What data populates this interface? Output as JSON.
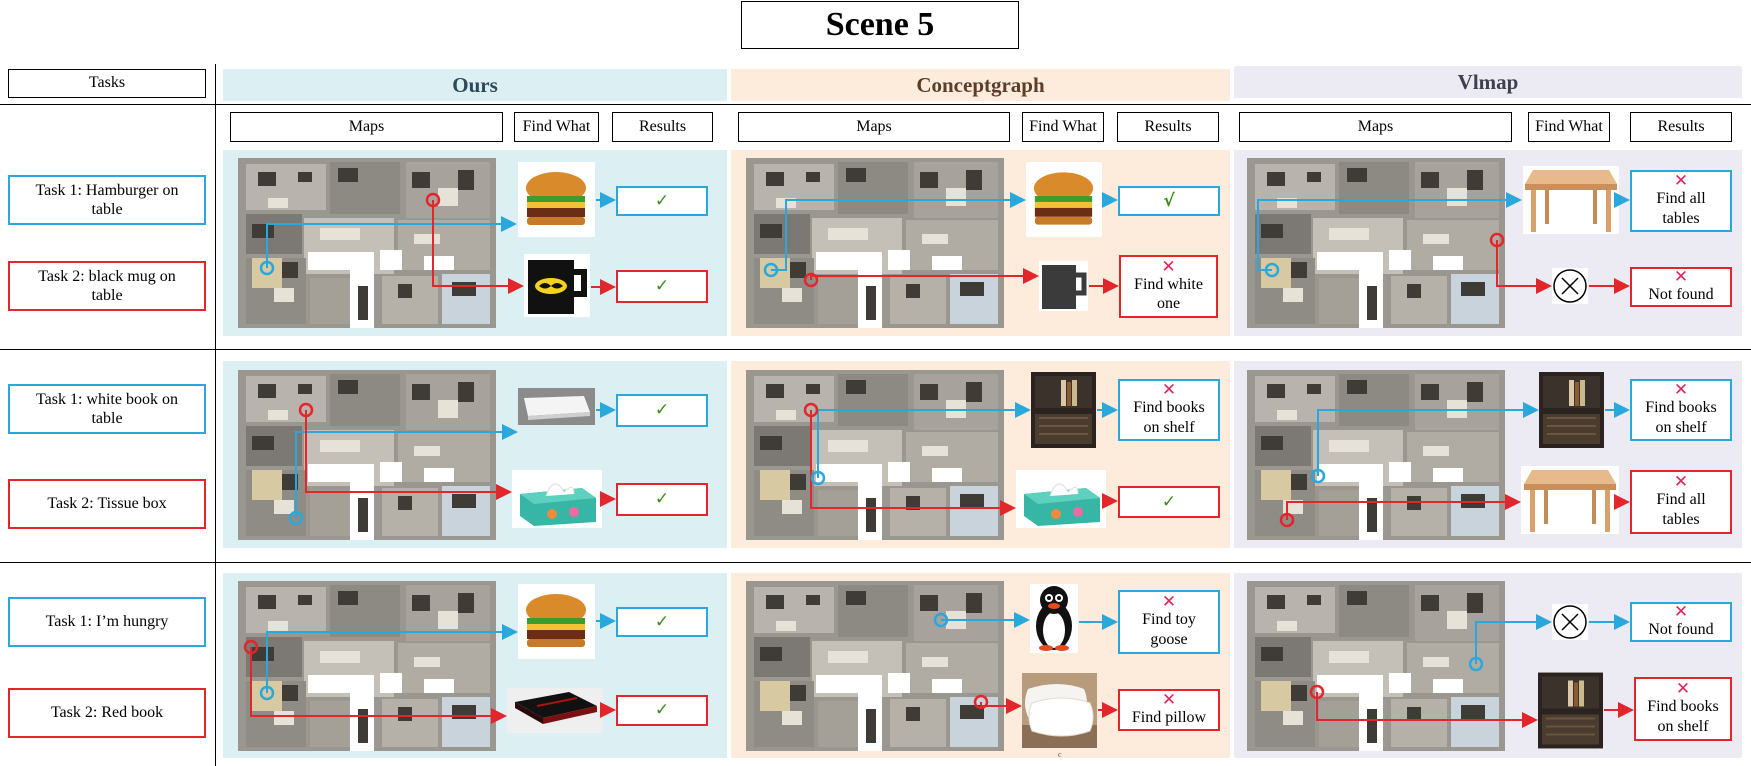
{
  "scene_title": "Scene 5",
  "tasks_header": "Tasks",
  "methods": [
    "Ours",
    "Conceptgraph",
    "Vlmap"
  ],
  "subheaders": {
    "maps": "Maps",
    "find_what": "Find What",
    "results": "Results"
  },
  "rows": [
    {
      "task1": "Task 1: Hamburger on table",
      "task2": "Task 2: black mug on table",
      "ours": {
        "r1": {
          "mark": "✓",
          "text": ""
        },
        "r2": {
          "mark": "✓",
          "text": ""
        }
      },
      "cg": {
        "r1": {
          "mark": "√",
          "text": ""
        },
        "r2": {
          "mark": "✕",
          "text": "Find white one"
        }
      },
      "vl": {
        "r1": {
          "mark": "✕",
          "text": "Find all tables"
        },
        "r2": {
          "mark": "✕",
          "text": "Not found"
        }
      }
    },
    {
      "task1": "Task 1: white book on table",
      "task2": "Task 2: Tissue box",
      "ours": {
        "r1": {
          "mark": "✓",
          "text": ""
        },
        "r2": {
          "mark": "✓",
          "text": ""
        }
      },
      "cg": {
        "r1": {
          "mark": "✕",
          "text": "Find books on shelf"
        },
        "r2": {
          "mark": "✓",
          "text": ""
        }
      },
      "vl": {
        "r1": {
          "mark": "✕",
          "text": "Find books on shelf"
        },
        "r2": {
          "mark": "✕",
          "text": "Find all tables"
        }
      }
    },
    {
      "task1": "Task 1: I’m hungry",
      "task2": "Task 2:  Red book",
      "ours": {
        "r1": {
          "mark": "✓",
          "text": ""
        },
        "r2": {
          "mark": "✓",
          "text": ""
        }
      },
      "cg": {
        "r1": {
          "mark": "✕",
          "text": "Find toy goose"
        },
        "r2": {
          "mark": "✕",
          "text": "Find pillow"
        }
      },
      "vl": {
        "r1": {
          "mark": "✕",
          "text": "Not found"
        },
        "r2": {
          "mark": "✕",
          "text": "Find books on shelf"
        }
      }
    }
  ],
  "footnote": "c",
  "colors": {
    "blue": "#2aa8dc",
    "red": "#e2262b",
    "check": "#3c8e19",
    "cross": "#e0255c"
  }
}
